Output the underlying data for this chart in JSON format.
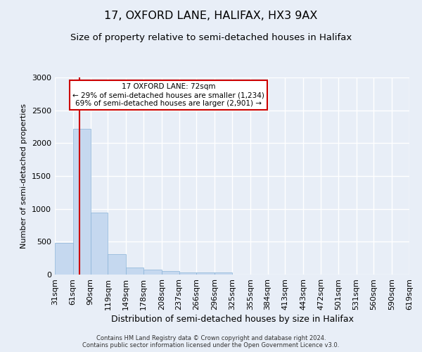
{
  "title": "17, OXFORD LANE, HALIFAX, HX3 9AX",
  "subtitle": "Size of property relative to semi-detached houses in Halifax",
  "xlabel": "Distribution of semi-detached houses by size in Halifax",
  "ylabel": "Number of semi-detached properties",
  "footer_line1": "Contains HM Land Registry data © Crown copyright and database right 2024.",
  "footer_line2": "Contains public sector information licensed under the Open Government Licence v3.0.",
  "annotation_line1": "17 OXFORD LANE: 72sqm",
  "annotation_line2": "← 29% of semi-detached houses are smaller (1,234)",
  "annotation_line3": "69% of semi-detached houses are larger (2,901) →",
  "bar_color": "#c5d8ef",
  "bar_edge_color": "#8ab4d8",
  "vline_color": "#cc0000",
  "vline_x": 72,
  "bin_edges": [
    31,
    61,
    90,
    119,
    149,
    178,
    208,
    237,
    266,
    296,
    325,
    355,
    384,
    413,
    443,
    472,
    501,
    531,
    560,
    590,
    619
  ],
  "bin_labels": [
    "31sqm",
    "61sqm",
    "90sqm",
    "119sqm",
    "149sqm",
    "178sqm",
    "208sqm",
    "237sqm",
    "266sqm",
    "296sqm",
    "325sqm",
    "355sqm",
    "384sqm",
    "413sqm",
    "443sqm",
    "472sqm",
    "501sqm",
    "531sqm",
    "560sqm",
    "590sqm",
    "619sqm"
  ],
  "counts": [
    480,
    2220,
    940,
    310,
    105,
    80,
    50,
    35,
    30,
    28,
    0,
    0,
    0,
    0,
    0,
    0,
    0,
    0,
    0,
    0
  ],
  "ylim": [
    0,
    3000
  ],
  "yticks": [
    0,
    500,
    1000,
    1500,
    2000,
    2500,
    3000
  ],
  "background_color": "#e8eef7",
  "plot_bg_color": "#e8eef7",
  "grid_color": "#ffffff",
  "title_fontsize": 11.5,
  "subtitle_fontsize": 9.5,
  "annotation_box_color": "#ffffff",
  "annotation_box_edge": "#cc0000",
  "ylabel_fontsize": 8,
  "xlabel_fontsize": 9,
  "tick_fontsize": 8,
  "footer_fontsize": 6
}
